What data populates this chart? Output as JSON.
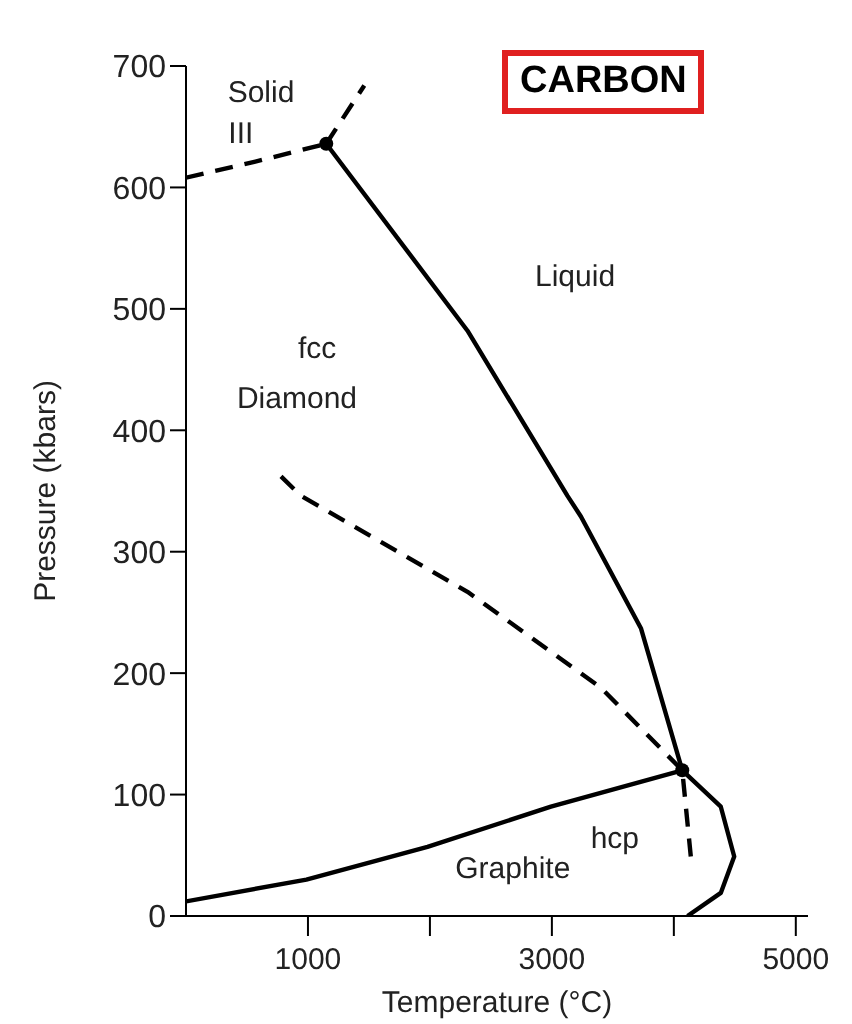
{
  "chart_data": {
    "type": "line",
    "title": "CARBON",
    "xlabel": "Temperature (°C)",
    "ylabel": "Pressure (kbars)",
    "xlim": [
      0,
      5100
    ],
    "xticks": [
      1000,
      {
        "value": 2000,
        "label": null
      },
      3000,
      {
        "value": 4000,
        "label": null
      },
      5000
    ],
    "ylim": [
      0,
      700
    ],
    "yticks": [
      0,
      100,
      200,
      300,
      400,
      500,
      600,
      700
    ],
    "grid": false,
    "legend": false,
    "marker": "none",
    "series": [
      {
        "color": "#000000",
        "line_style": "dashed",
        "x": [
          0,
          560,
          1150
        ],
        "values": [
          608,
          621,
          636
        ]
      },
      {
        "color": "#000000",
        "line_style": "dashed",
        "x": [
          1150,
          1462
        ],
        "values": [
          636,
          684
        ]
      },
      {
        "color": "#000000",
        "line_style": "solid",
        "x": [
          1150,
          2308,
          3128,
          3238,
          3730,
          4069
        ],
        "values": [
          636,
          482,
          346,
          329,
          237,
          120
        ]
      },
      {
        "color": "#000000",
        "line_style": "solid",
        "x": [
          4069,
          4385,
          4495,
          4385,
          4112
        ],
        "values": [
          120,
          90,
          49,
          19,
          0
        ]
      },
      {
        "color": "#000000",
        "line_style": "solid",
        "x": [
          0,
          987,
          1980,
          2992,
          4069
        ],
        "values": [
          12,
          30,
          57,
          90,
          120
        ]
      },
      {
        "color": "#000000",
        "line_style": "dashed",
        "x": [
          779,
          943,
          2308,
          3402,
          4069
        ],
        "values": [
          362,
          346,
          267,
          188,
          120
        ]
      },
      {
        "color": "#000000",
        "line_style": "dashed",
        "x": [
          4139,
          4069
        ],
        "values": [
          49,
          120
        ]
      },
      {
        "type": "scatter",
        "color": "#000000",
        "marker": "circle",
        "x": [
          1150,
          4069
        ],
        "values": [
          636,
          120
        ]
      }
    ],
    "annotations": [
      "Solid",
      "III",
      "Liquid",
      "fcc",
      "Diamond",
      "hcp",
      "Graphite"
    ]
  }
}
